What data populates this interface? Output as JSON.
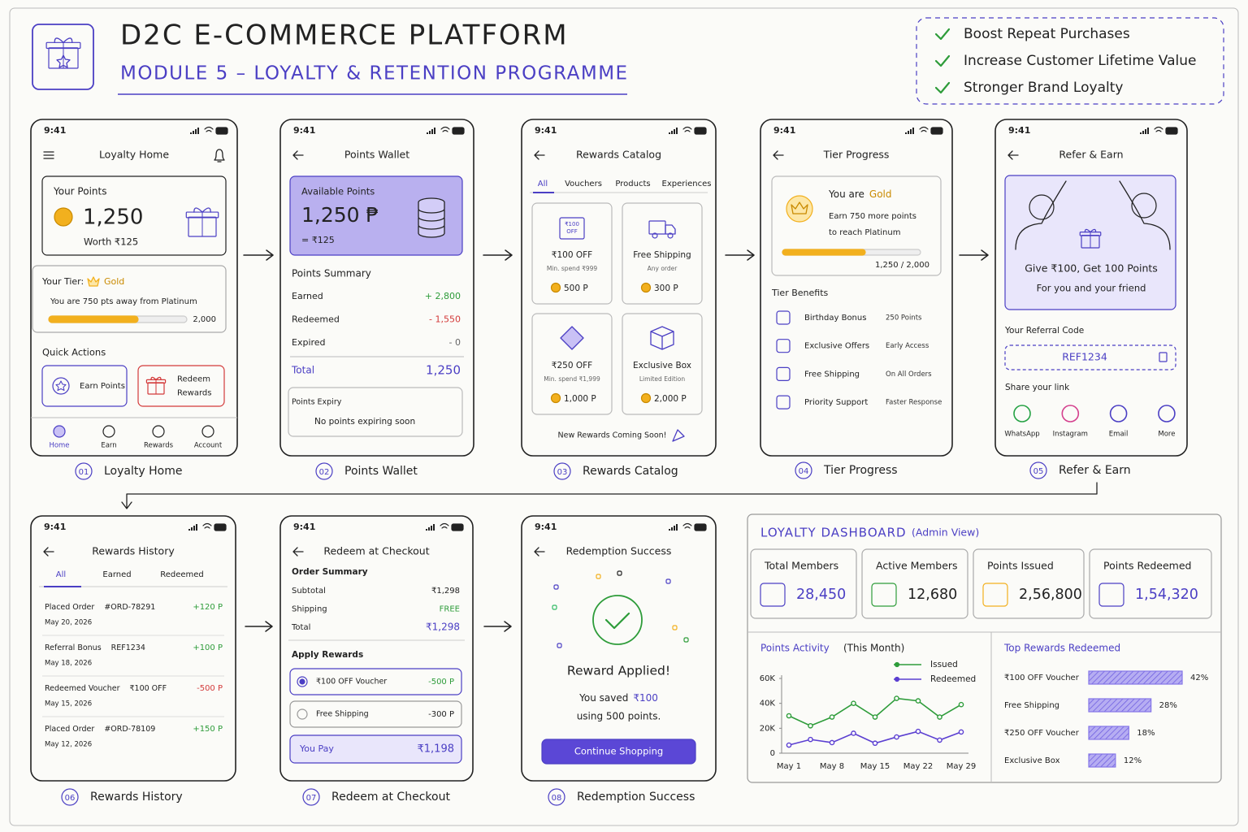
{
  "header": {
    "title": "D2C E-COMMERCE PLATFORM",
    "subtitle": "MODULE 5 – LOYALTY & RETENTION PROGRAMME"
  },
  "benefits": [
    "Boost Repeat Purchases",
    "Increase Customer Lifetime Value",
    "Stronger Brand Loyalty"
  ],
  "screens": [
    {
      "time": "9:41",
      "title": "Loyalty Home",
      "number": "01",
      "caption": "Loyalty Home",
      "points_label": "Your Points",
      "points": "1,250",
      "worth": "Worth ₹125",
      "tier_label": "Your Tier:",
      "tier": "Gold",
      "tier_note": "You are 750 pts away from Platinum",
      "tier_target": "2,000",
      "actions_label": "Quick Actions",
      "actions": [
        {
          "lines": [
            "Earn Points"
          ]
        },
        {
          "lines": [
            "Redeem",
            "Rewards"
          ]
        }
      ],
      "nav": [
        "Home",
        "Earn",
        "Rewards",
        "Account"
      ]
    },
    {
      "time": "9:41",
      "title": "Points Wallet",
      "number": "02",
      "caption": "Points Wallet",
      "available_label": "Available Points",
      "points": "1,250 ₱",
      "value": "= ₹125",
      "summary_label": "Points Summary",
      "rows": [
        [
          "Earned",
          "+ 2,800"
        ],
        [
          "Redeemed",
          "- 1,550"
        ],
        [
          "Expired",
          "- 0"
        ]
      ],
      "total": [
        "Total",
        "1,250"
      ],
      "expiry_label": "Points Expiry",
      "expiry": "No points expiring soon"
    },
    {
      "time": "9:41",
      "title": "Rewards Catalog",
      "number": "03",
      "caption": "Rewards Catalog",
      "tabs": [
        "All",
        "Vouchers",
        "Products",
        "Experiences"
      ],
      "items": [
        {
          "icon_label": [
            "₹100",
            "OFF"
          ],
          "name": "₹100 OFF",
          "note": "Min. spend ₹999",
          "cost": "500 P"
        },
        {
          "name": "Free Shipping",
          "note": "Any order",
          "cost": "300 P"
        },
        {
          "name": "₹250 OFF",
          "note": "Min. spend ₹1,999",
          "cost": "1,000 P"
        },
        {
          "name": "Exclusive Box",
          "note": "Limited Edition",
          "cost": "2,000 P"
        }
      ],
      "footer": "New Rewards Coming Soon!"
    },
    {
      "time": "9:41",
      "title": "Tier Progress",
      "number": "04",
      "caption": "Tier Progress",
      "you_are": "You are",
      "tier": "Gold",
      "note": [
        "Earn 750 more points",
        "to reach Platinum"
      ],
      "progress": "1,250 / 2,000",
      "benefits_label": "Tier Benefits",
      "benefits": [
        [
          "Birthday Bonus",
          "250 Points"
        ],
        [
          "Exclusive Offers",
          "Early Access"
        ],
        [
          "Free Shipping",
          "On All Orders"
        ],
        [
          "Priority Support",
          "Faster Response"
        ]
      ]
    },
    {
      "time": "9:41",
      "title": "Refer & Earn",
      "number": "05",
      "caption": "Refer & Earn",
      "offer": "Give ₹100, Get 100 Points",
      "offer_note": "For you and your friend",
      "code_label": "Your Referral Code",
      "code": "REF1234",
      "share_label": "Share your link",
      "share": [
        "WhatsApp",
        "Instagram",
        "Email",
        "More"
      ]
    },
    {
      "time": "9:41",
      "title": "Rewards History",
      "number": "06",
      "caption": "Rewards History",
      "tabs": [
        "All",
        "Earned",
        "Redeemed"
      ],
      "items": [
        {
          "title": "Placed Order",
          "ref": "#ORD-78291",
          "date": "May 20, 2026",
          "points": "+120 P"
        },
        {
          "title": "Referral Bonus",
          "ref": "REF1234",
          "date": "May 18, 2026",
          "points": "+100 P"
        },
        {
          "title": "Redeemed Voucher",
          "ref": "₹100 OFF",
          "date": "May 15, 2026",
          "points": "-500 P"
        },
        {
          "title": "Placed Order",
          "ref": "#ORD-78109",
          "date": "May 12, 2026",
          "points": "+150 P"
        }
      ]
    },
    {
      "time": "9:41",
      "title": "Redeem at Checkout",
      "number": "07",
      "caption": "Redeem at Checkout",
      "order_label": "Order Summary",
      "rows": [
        [
          "Subtotal",
          "₹1,298"
        ],
        [
          "Shipping",
          "FREE"
        ],
        [
          "Total",
          "₹1,298"
        ]
      ],
      "apply_label": "Apply Rewards",
      "options": [
        [
          "₹100 OFF Voucher",
          "-500 P"
        ],
        [
          "Free Shipping",
          "-300 P"
        ]
      ],
      "pay": [
        "You Pay",
        "₹1,198"
      ]
    },
    {
      "time": "9:41",
      "title": "Redemption Success",
      "number": "08",
      "caption": "Redemption Success",
      "heading": "Reward Applied!",
      "saved_label": "You saved",
      "saved": "₹100",
      "note": "using 500 points.",
      "button": "Continue Shopping"
    }
  ],
  "dashboard": {
    "title": "LOYALTY DASHBOARD",
    "view": "(Admin View)",
    "kpis": [
      [
        "Total Members",
        "28,450"
      ],
      [
        "Active Members",
        "12,680"
      ],
      [
        "Points Issued",
        "2,56,800"
      ],
      [
        "Points Redeemed",
        "1,54,320"
      ]
    ],
    "activity": {
      "type": "line",
      "title": "Points Activity",
      "period": "(This Month)",
      "categories": [
        "May 1",
        null,
        "May 8",
        null,
        "May 15",
        null,
        "May 22",
        null,
        "May 29"
      ],
      "ylim": [
        0,
        60000
      ],
      "yticks": [
        0,
        {
          "value": 20000,
          "label": "20K"
        },
        {
          "value": 40000,
          "label": "40K"
        },
        {
          "value": 60000,
          "label": "60K"
        }
      ],
      "series": [
        {
          "name": "Issued",
          "color": "#2e9c3a",
          "values": [
            30000,
            22000,
            29000,
            40000,
            29000,
            44000,
            42000,
            29000,
            39000
          ]
        },
        {
          "name": "Redeemed",
          "color": "#5b3fd1",
          "values": [
            6500,
            11000,
            8500,
            16000,
            8000,
            13000,
            17500,
            10500,
            17000
          ]
        }
      ]
    },
    "top_rewards": {
      "type": "bar",
      "title": "Top Rewards Redeemed",
      "color": "#8576e8",
      "categories": [
        "₹100 OFF Voucher",
        "Free Shipping",
        "₹250 OFF Voucher",
        "Exclusive Box"
      ],
      "values": [
        42,
        28,
        18,
        12
      ],
      "value_labels": [
        "42%",
        "28%",
        "18%",
        "12%"
      ]
    }
  }
}
